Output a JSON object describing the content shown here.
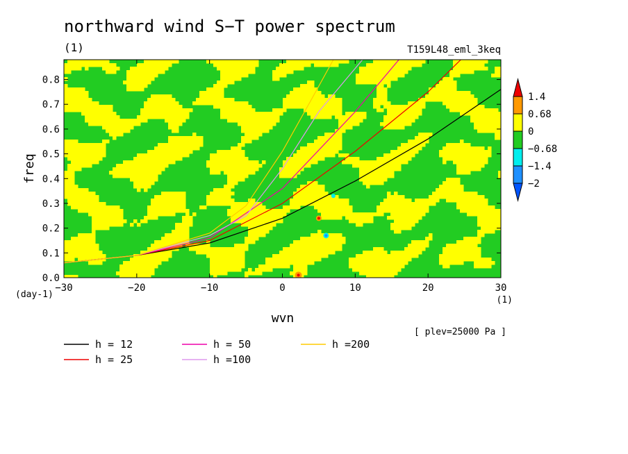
{
  "chart_data": {
    "type": "heatmap",
    "title": "northward wind S−T power spectrum",
    "units_label": "(1)",
    "experiment": "T159L48_eml_3keq",
    "xlabel": "wvn",
    "x_units": "(1)",
    "ylabel": "freq",
    "y_units": "(day-1)",
    "xlim": [
      -30,
      30
    ],
    "ylim": [
      0,
      0.88
    ],
    "xticks": [
      -30,
      -20,
      -10,
      0,
      10,
      20,
      30
    ],
    "yticks": [
      0.0,
      0.1,
      0.2,
      0.3,
      0.4,
      0.5,
      0.6,
      0.7,
      0.8
    ],
    "annotation": "[ plev=25000 Pa ]",
    "colorbar": {
      "labels": [
        "1.4",
        "0.68",
        "0",
        "−0.68",
        "−1.4",
        "−2"
      ],
      "colors": [
        "#ee0000",
        "#ff9900",
        "#ffff00",
        "#22cc22",
        "#00eeee",
        "#1e90ff",
        "#0055ff"
      ]
    },
    "field_description": "values mostly between -0.68 and 0.68 (green/yellow mottled), isolated extrema near wvn 2-6, freq 0.17-0.24",
    "curves": [
      {
        "label": "h = 12",
        "h": 12,
        "color": "#000000",
        "x": [
          -30,
          -20,
          -10,
          0,
          10,
          20,
          30
        ],
        "y": [
          0.06,
          0.09,
          0.14,
          0.24,
          0.39,
          0.56,
          0.76
        ]
      },
      {
        "label": "h = 25",
        "h": 25,
        "color": "#ee0000",
        "x": [
          -30,
          -20,
          -10,
          0,
          10,
          20,
          24.5
        ],
        "y": [
          0.06,
          0.09,
          0.15,
          0.3,
          0.51,
          0.75,
          0.88
        ]
      },
      {
        "label": "h = 50",
        "h": 50,
        "color": "#ee00aa",
        "x": [
          -30,
          -20,
          -10,
          0,
          10,
          16
        ],
        "y": [
          0.06,
          0.09,
          0.16,
          0.36,
          0.67,
          0.88
        ]
      },
      {
        "label": "h =100",
        "h": 100,
        "color": "#dd99ee",
        "x": [
          -30,
          -20,
          -10,
          -5,
          0,
          5,
          11
        ],
        "y": [
          0.06,
          0.09,
          0.17,
          0.25,
          0.44,
          0.67,
          0.88
        ]
      },
      {
        "label": "h =200",
        "h": 200,
        "color": "#ffcc00",
        "x": [
          -30,
          -20,
          -10,
          -5,
          0,
          4,
          7
        ],
        "y": [
          0.06,
          0.09,
          0.18,
          0.29,
          0.51,
          0.72,
          0.88
        ]
      }
    ]
  }
}
